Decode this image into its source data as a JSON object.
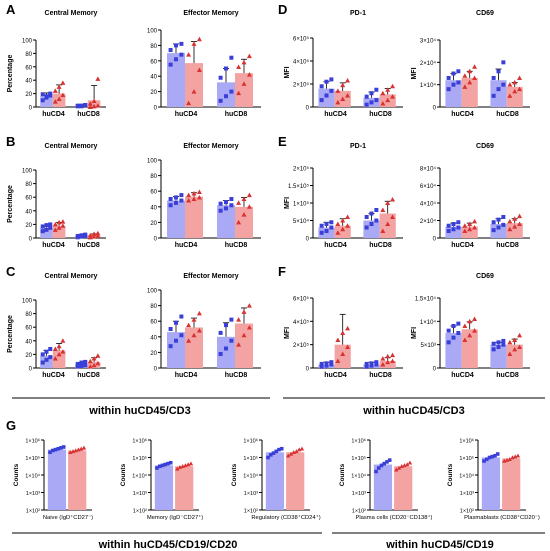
{
  "panel_letters": [
    "A",
    "B",
    "C",
    "D",
    "E",
    "F",
    "G"
  ],
  "captions": {
    "left": "within huCD45/CD3",
    "right": "within huCD45/CD3",
    "bottom_left": "within huCD45/CD19/CD20",
    "bottom_right": "within huCD45/CD19"
  },
  "colors": {
    "blue_bar": "#a9a9f5",
    "blue_dot": "#3a3fd8",
    "red_bar": "#f4a3a3",
    "red_dot": "#d83232"
  },
  "chart_data": [
    {
      "id": "A1",
      "type": "bar",
      "title": "Central Memory",
      "ylabel": "Percentage",
      "categories": [
        "huCD4",
        "huCD8"
      ],
      "ylim": [
        0,
        100
      ],
      "yticks": [
        "0",
        "20",
        "40",
        "60",
        "80",
        "100"
      ],
      "series": [
        {
          "values": [
            16,
            2
          ],
          "errors": [
            5,
            2
          ],
          "points": [
            [
              10,
              14,
              17,
              19,
              16,
              20
            ],
            [
              1,
              2,
              3,
              2,
              1,
              3
            ]
          ]
        },
        {
          "values": [
            20,
            10
          ],
          "errors": [
            13,
            22
          ],
          "points": [
            [
              8,
              12,
              18,
              24,
              30,
              36
            ],
            [
              0,
              1,
              2,
              5,
              9,
              42
            ]
          ]
        }
      ]
    },
    {
      "id": "A2",
      "type": "bar",
      "title": "Effector Memory",
      "ylabel": "",
      "categories": [
        "huCD4",
        "huCD8"
      ],
      "ylim": [
        0,
        100
      ],
      "yticks": [
        "0",
        "20",
        "40",
        "60",
        "80",
        "100"
      ],
      "series": [
        {
          "values": [
            70,
            32
          ],
          "errors": [
            12,
            18
          ],
          "points": [
            [
              55,
              62,
              68,
              74,
              80,
              82
            ],
            [
              8,
              14,
              20,
              38,
              50,
              64
            ]
          ]
        },
        {
          "values": [
            57,
            44
          ],
          "errors": [
            28,
            18
          ],
          "points": [
            [
              5,
              20,
              48,
              68,
              82,
              88
            ],
            [
              18,
              30,
              42,
              52,
              58,
              66
            ]
          ]
        }
      ]
    },
    {
      "id": "B1",
      "type": "bar",
      "title": "Central Memory",
      "ylabel": "Percentage",
      "categories": [
        "huCD4",
        "huCD8"
      ],
      "ylim": [
        0,
        100
      ],
      "yticks": [
        "0",
        "20",
        "40",
        "60",
        "80",
        "100"
      ],
      "series": [
        {
          "values": [
            15,
            3
          ],
          "errors": [
            4,
            1
          ],
          "points": [
            [
              10,
              12,
              15,
              17,
              19,
              20
            ],
            [
              1,
              2,
              3,
              3,
              4,
              5
            ]
          ]
        },
        {
          "values": [
            18,
            4
          ],
          "errors": [
            5,
            2
          ],
          "points": [
            [
              12,
              15,
              18,
              20,
              23,
              24
            ],
            [
              1,
              2,
              3,
              4,
              6,
              7
            ]
          ]
        }
      ]
    },
    {
      "id": "B2",
      "type": "bar",
      "title": "Effector Memory",
      "ylabel": "",
      "categories": [
        "huCD4",
        "huCD8"
      ],
      "ylim": [
        0,
        100
      ],
      "yticks": [
        "0",
        "20",
        "40",
        "60",
        "80",
        "100"
      ],
      "series": [
        {
          "values": [
            48,
            42
          ],
          "errors": [
            5,
            6
          ],
          "points": [
            [
              42,
              45,
              48,
              50,
              52,
              55
            ],
            [
              35,
              38,
              42,
              44,
              46,
              50
            ]
          ]
        },
        {
          "values": [
            53,
            40
          ],
          "errors": [
            5,
            12
          ],
          "points": [
            [
              48,
              50,
              52,
              55,
              57,
              59
            ],
            [
              20,
              30,
              40,
              45,
              50,
              55
            ]
          ]
        }
      ]
    },
    {
      "id": "C1",
      "type": "bar",
      "title": "Central Memory",
      "ylabel": "Percentage",
      "categories": [
        "huCD4",
        "huCD8"
      ],
      "ylim": [
        0,
        100
      ],
      "yticks": [
        "0",
        "20",
        "40",
        "60",
        "80",
        "100"
      ],
      "series": [
        {
          "values": [
            18,
            5
          ],
          "errors": [
            8,
            3
          ],
          "points": [
            [
              8,
              12,
              16,
              20,
              24,
              28
            ],
            [
              2,
              3,
              4,
              6,
              8,
              9
            ]
          ]
        },
        {
          "values": [
            26,
            9
          ],
          "errors": [
            10,
            6
          ],
          "points": [
            [
              14,
              20,
              24,
              28,
              32,
              40
            ],
            [
              2,
              4,
              7,
              10,
              14,
              18
            ]
          ]
        }
      ]
    },
    {
      "id": "C2",
      "type": "bar",
      "title": "Effector Memory",
      "ylabel": "",
      "categories": [
        "huCD4",
        "huCD8"
      ],
      "ylim": [
        0,
        100
      ],
      "yticks": [
        "0",
        "20",
        "40",
        "60",
        "80",
        "100"
      ],
      "series": [
        {
          "values": [
            46,
            40
          ],
          "errors": [
            14,
            18
          ],
          "points": [
            [
              28,
              35,
              42,
              50,
              58,
              66
            ],
            [
              18,
              25,
              35,
              45,
              55,
              62
            ]
          ]
        },
        {
          "values": [
            52,
            57
          ],
          "errors": [
            12,
            20
          ],
          "points": [
            [
              35,
              42,
              48,
              55,
              62,
              70
            ],
            [
              30,
              42,
              52,
              62,
              72,
              80
            ]
          ]
        }
      ]
    },
    {
      "id": "D1",
      "type": "bar",
      "title": "PD-1",
      "ylabel": "MFI",
      "categories": [
        "huCD4",
        "huCD8"
      ],
      "ylim": [
        0,
        6
      ],
      "yticks": [
        "0",
        "2×10⁵",
        "4×10⁵",
        "6×10⁵"
      ],
      "series": [
        {
          "values": [
            1.6,
            0.8
          ],
          "errors": [
            0.6,
            0.5
          ],
          "points": [
            [
              0.6,
              1.0,
              1.4,
              1.8,
              2.2,
              2.4
            ],
            [
              0.2,
              0.4,
              0.6,
              0.9,
              1.2,
              1.5
            ]
          ]
        },
        {
          "values": [
            1.4,
            1.1
          ],
          "errors": [
            0.7,
            0.5
          ],
          "points": [
            [
              0.4,
              0.7,
              1.0,
              1.4,
              1.9,
              2.3
            ],
            [
              0.3,
              0.6,
              0.9,
              1.2,
              1.5,
              1.8
            ]
          ]
        }
      ]
    },
    {
      "id": "D2",
      "type": "bar",
      "title": "CD69",
      "ylabel": "MFI",
      "categories": [
        "huCD4",
        "huCD8"
      ],
      "ylim": [
        0,
        3
      ],
      "yticks": [
        "0",
        "1×10⁴",
        "2×10⁴",
        "3×10⁴"
      ],
      "series": [
        {
          "values": [
            1.2,
            1.2
          ],
          "errors": [
            0.3,
            0.5
          ],
          "points": [
            [
              0.8,
              1.0,
              1.1,
              1.3,
              1.5,
              1.6
            ],
            [
              0.5,
              0.8,
              1.0,
              1.3,
              1.6,
              2.0
            ]
          ]
        },
        {
          "values": [
            1.3,
            0.9
          ],
          "errors": [
            0.3,
            0.2
          ],
          "points": [
            [
              0.9,
              1.1,
              1.3,
              1.4,
              1.6,
              1.8
            ],
            [
              0.5,
              0.7,
              0.8,
              1.0,
              1.1,
              1.3
            ]
          ]
        }
      ]
    },
    {
      "id": "E1",
      "type": "bar",
      "title": "PD-1",
      "ylabel": "MFI",
      "categories": [
        "huCD4",
        "huCD8"
      ],
      "ylim": [
        0,
        2
      ],
      "yticks": [
        "0",
        "5×10⁴",
        "1×10⁵",
        "1.5×10⁵",
        "2×10⁵"
      ],
      "series": [
        {
          "values": [
            0.3,
            0.5
          ],
          "errors": [
            0.15,
            0.2
          ],
          "points": [
            [
              0.15,
              0.2,
              0.3,
              0.35,
              0.4,
              0.45
            ],
            [
              0.3,
              0.4,
              0.5,
              0.6,
              0.7,
              0.8
            ]
          ]
        },
        {
          "values": [
            0.35,
            0.7
          ],
          "errors": [
            0.2,
            0.35
          ],
          "points": [
            [
              0.15,
              0.25,
              0.35,
              0.4,
              0.5,
              0.6
            ],
            [
              0.2,
              0.4,
              0.6,
              0.8,
              1.0,
              1.1
            ]
          ]
        }
      ]
    },
    {
      "id": "E2",
      "type": "bar",
      "title": "CD69",
      "ylabel": "",
      "categories": [
        "huCD4",
        "huCD8"
      ],
      "ylim": [
        0,
        8
      ],
      "yticks": [
        "0",
        "2×10⁴",
        "4×10⁴",
        "6×10⁴",
        "8×10⁴"
      ],
      "series": [
        {
          "values": [
            1.3,
            1.6
          ],
          "errors": [
            0.4,
            0.6
          ],
          "points": [
            [
              0.8,
              1.0,
              1.2,
              1.4,
              1.6,
              1.8
            ],
            [
              0.9,
              1.2,
              1.5,
              1.8,
              2.1,
              2.4
            ]
          ]
        },
        {
          "values": [
            1.3,
            1.7
          ],
          "errors": [
            0.4,
            0.5
          ],
          "points": [
            [
              0.8,
              1.0,
              1.2,
              1.4,
              1.6,
              1.9
            ],
            [
              1.0,
              1.3,
              1.6,
              1.9,
              2.2,
              2.5
            ]
          ]
        }
      ]
    },
    {
      "id": "F1",
      "type": "bar",
      "title": "",
      "ylabel": "MFI",
      "categories": [
        "huCD4",
        "huCD8"
      ],
      "ylim": [
        0,
        6
      ],
      "yticks": [
        "0",
        "2×10⁵",
        "4×10⁵",
        "6×10⁵"
      ],
      "series": [
        {
          "values": [
            0.3,
            0.3
          ],
          "errors": [
            0.2,
            0.2
          ],
          "points": [
            [
              0.1,
              0.2,
              0.3,
              0.35,
              0.4,
              0.5
            ],
            [
              0.1,
              0.2,
              0.3,
              0.35,
              0.4,
              0.5
            ]
          ]
        },
        {
          "values": [
            2.0,
            0.6
          ],
          "errors": [
            2.6,
            0.3
          ],
          "points": [
            [
              0.6,
              1.2,
              1.8,
              2.4,
              3.0,
              3.4
            ],
            [
              0.3,
              0.5,
              0.6,
              0.8,
              1.0,
              1.1
            ]
          ]
        }
      ]
    },
    {
      "id": "F2",
      "type": "bar",
      "title": "CD69",
      "ylabel": "MFI",
      "categories": [
        "huCD4",
        "huCD8"
      ],
      "ylim": [
        0,
        15
      ],
      "yticks": [
        "0",
        "5×10³",
        "1×10⁴",
        "1.5×10⁴"
      ],
      "series": [
        {
          "values": [
            7.5,
            5
          ],
          "errors": [
            1.5,
            0.5
          ],
          "points": [
            [
              5.5,
              6.5,
              7.5,
              8.0,
              9.0,
              9.5
            ],
            [
              4.0,
              4.5,
              5.0,
              5.2,
              5.5,
              5.8
            ]
          ]
        },
        {
          "values": [
            8.3,
            5
          ],
          "errors": [
            1.6,
            1.2
          ],
          "points": [
            [
              6.0,
              7.0,
              8.0,
              9.0,
              10.0,
              10.5
            ],
            [
              3.0,
              4.0,
              4.5,
              5.5,
              6.0,
              7.0
            ]
          ]
        }
      ]
    },
    {
      "id": "G1",
      "type": "bar",
      "title": "",
      "ylabel": "Counts",
      "xlabel": "Naive (IgD⁺CD27⁻)",
      "log": true,
      "yticks": [
        "1×10²",
        "1×10³",
        "1×10⁴",
        "1×10⁵",
        "1×10⁶"
      ],
      "series": [
        {
          "values": [
            5.45
          ],
          "points": [
            5.3,
            5.4,
            5.45,
            5.5,
            5.55,
            5.6
          ]
        },
        {
          "values": [
            5.4
          ],
          "points": [
            5.3,
            5.35,
            5.4,
            5.45,
            5.5,
            5.55
          ]
        }
      ]
    },
    {
      "id": "G2",
      "type": "bar",
      "title": "",
      "ylabel": "Counts",
      "xlabel": "Memory (IgD⁻CD27⁺)",
      "log": true,
      "yticks": [
        "1×10²",
        "1×10³",
        "1×10⁴",
        "1×10⁵",
        "1×10⁶"
      ],
      "series": [
        {
          "values": [
            4.55
          ],
          "points": [
            4.4,
            4.5,
            4.55,
            4.6,
            4.65,
            4.7
          ]
        },
        {
          "values": [
            4.5
          ],
          "points": [
            4.35,
            4.45,
            4.5,
            4.55,
            4.6,
            4.65
          ]
        }
      ]
    },
    {
      "id": "G3",
      "type": "bar",
      "title": "",
      "ylabel": "Counts",
      "xlabel": "Regulatory (CD38⁺CD24⁺)",
      "log": true,
      "yticks": [
        "1×10²",
        "1×10³",
        "1×10⁴",
        "1×10⁵",
        "1×10⁶"
      ],
      "series": [
        {
          "values": [
            5.3
          ],
          "points": [
            5.0,
            5.15,
            5.25,
            5.35,
            5.45,
            5.5
          ]
        },
        {
          "values": [
            5.3
          ],
          "points": [
            5.1,
            5.2,
            5.3,
            5.35,
            5.45,
            5.5
          ]
        }
      ]
    },
    {
      "id": "G4",
      "type": "bar",
      "title": "",
      "ylabel": "Counts",
      "xlabel": "Plasma cells (CD20⁻CD138⁺)",
      "log": true,
      "yticks": [
        "1×10²",
        "1×10³",
        "1×10⁴",
        "1×10⁵",
        "1×10⁶"
      ],
      "series": [
        {
          "values": [
            4.6
          ],
          "points": [
            4.2,
            4.4,
            4.55,
            4.65,
            4.75,
            4.85
          ]
        },
        {
          "values": [
            4.5
          ],
          "points": [
            4.3,
            4.4,
            4.5,
            4.55,
            4.6,
            4.7
          ]
        }
      ]
    },
    {
      "id": "G5",
      "type": "bar",
      "title": "",
      "ylabel": "Counts",
      "xlabel": "Plasmablasts (CD38⁺CD20⁻)",
      "log": true,
      "yticks": [
        "1×10²",
        "1×10³",
        "1×10⁴",
        "1×10⁵",
        "1×10⁶"
      ],
      "series": [
        {
          "values": [
            5.0
          ],
          "points": [
            4.8,
            4.9,
            5.0,
            5.05,
            5.1,
            5.2
          ]
        },
        {
          "values": [
            4.95
          ],
          "points": [
            4.8,
            4.85,
            4.9,
            5.0,
            5.05,
            5.1
          ]
        }
      ]
    }
  ]
}
